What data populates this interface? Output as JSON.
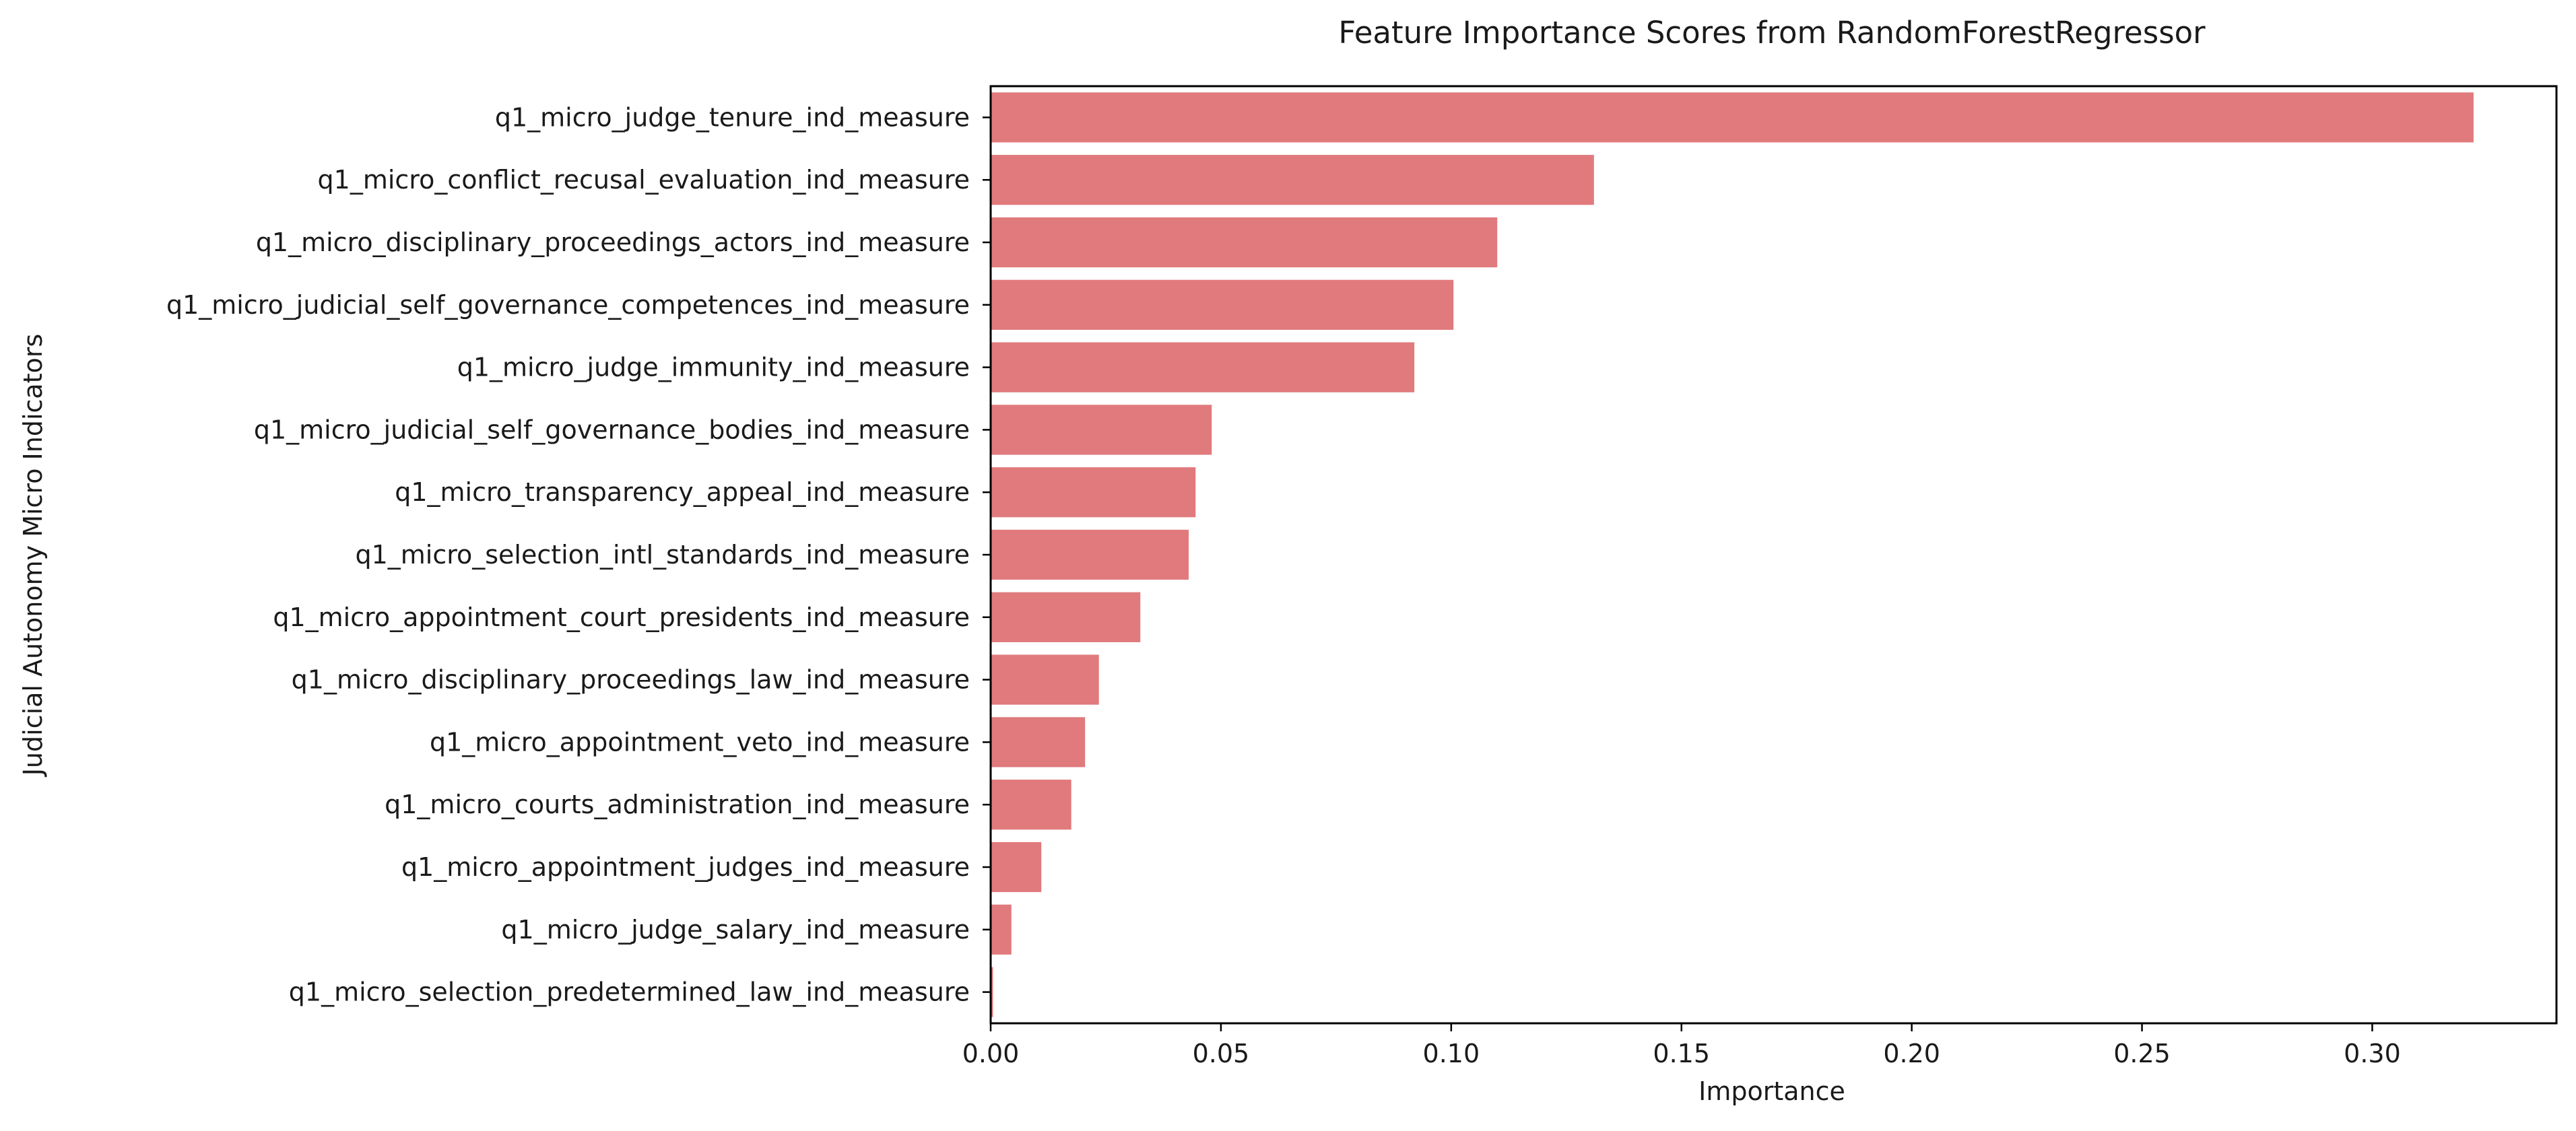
{
  "chart_data": {
    "type": "bar",
    "orientation": "horizontal",
    "title": "Feature Importance Scores from RandomForestRegressor",
    "xlabel": "Importance",
    "ylabel": "Judicial Autonomy Micro Indicators",
    "xlim": [
      0,
      0.34
    ],
    "xticks": [
      "0.00",
      "0.05",
      "0.10",
      "0.15",
      "0.20",
      "0.25",
      "0.30"
    ],
    "grid": false,
    "legend": "none",
    "bar_color": "#e07a7d",
    "categories": [
      "q1_micro_judge_tenure_ind_measure",
      "q1_micro_conflict_recusal_evaluation_ind_measure",
      "q1_micro_disciplinary_proceedings_actors_ind_measure",
      "q1_micro_judicial_self_governance_competences_ind_measure",
      "q1_micro_judge_immunity_ind_measure",
      "q1_micro_judicial_self_governance_bodies_ind_measure",
      "q1_micro_transparency_appeal_ind_measure",
      "q1_micro_selection_intl_standards_ind_measure",
      "q1_micro_appointment_court_presidents_ind_measure",
      "q1_micro_disciplinary_proceedings_law_ind_measure",
      "q1_micro_appointment_veto_ind_measure",
      "q1_micro_courts_administration_ind_measure",
      "q1_micro_appointment_judges_ind_measure",
      "q1_micro_judge_salary_ind_measure",
      "q1_micro_selection_predetermined_law_ind_measure"
    ],
    "values": [
      0.322,
      0.131,
      0.11,
      0.1005,
      0.092,
      0.048,
      0.0445,
      0.043,
      0.0325,
      0.0235,
      0.0205,
      0.0175,
      0.011,
      0.0045,
      0.0005
    ]
  }
}
